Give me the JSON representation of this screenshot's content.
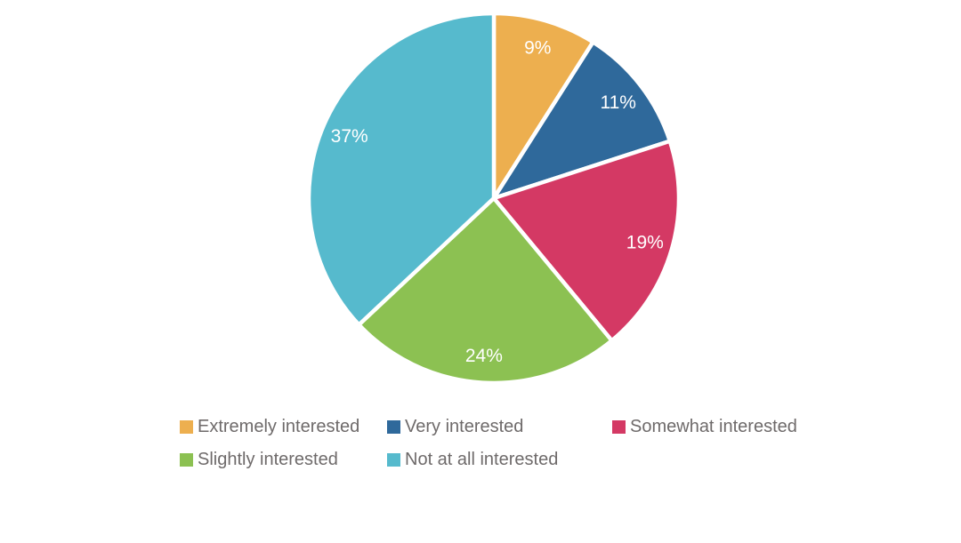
{
  "chart_data": {
    "type": "pie",
    "title": "",
    "categories": [
      "Extremely interested",
      "Very interested",
      "Somewhat interested",
      "Slightly interested",
      "Not at all interested"
    ],
    "values": [
      9,
      11,
      19,
      24,
      37
    ],
    "labels": [
      "9%",
      "11%",
      "19%",
      "24%",
      "37%"
    ],
    "colors": [
      "#EDAF4F",
      "#2F699B",
      "#D43964",
      "#8CC152",
      "#56BACD"
    ],
    "start_angle_deg": 0,
    "direction": "clockwise",
    "slice_label_color": "#FFFFFF",
    "slice_gap_color": "#FFFFFF",
    "legend_position": "bottom",
    "legend_text_color": "#6E6A6A",
    "background_color": "#FFFFFF"
  }
}
